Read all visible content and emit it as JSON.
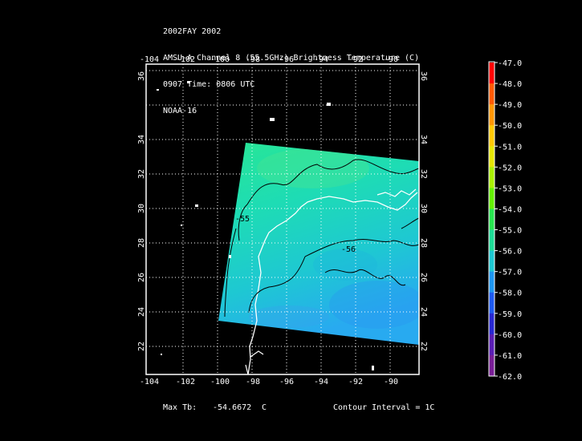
{
  "header": {
    "line1": "2002FAY 2002",
    "line2": "AMSU-A Channel 8 (55.5GHz) Brightness Temperature (C)",
    "line3": "0907 Time: 0806 UTC",
    "line4": "NOAA-16"
  },
  "map": {
    "lon_ticks": [
      "-104",
      "-102",
      "-100",
      "-98",
      "-96",
      "-94",
      "-92",
      "-90"
    ],
    "lat_ticks": [
      "22",
      "24",
      "26",
      "28",
      "30",
      "32",
      "34",
      "36"
    ],
    "contours": [
      {
        "label": "-55"
      },
      {
        "label": "-56"
      }
    ]
  },
  "colorbar": {
    "labels": [
      "-47.0",
      "-48.0",
      "-49.0",
      "-50.0",
      "-51.0",
      "-52.0",
      "-53.0",
      "-54.0",
      "-55.0",
      "-56.0",
      "-57.0",
      "-58.0",
      "-59.0",
      "-60.0",
      "-61.0",
      "-62.0"
    ],
    "colors": [
      "#ff0000",
      "#ff5a00",
      "#ff9600",
      "#ffc800",
      "#e6e600",
      "#aaf000",
      "#64f000",
      "#28e650",
      "#1edc96",
      "#1ec8d2",
      "#1e96f0",
      "#1e5af0",
      "#2828d2",
      "#5a1eb4",
      "#781e96",
      "#643c78"
    ]
  },
  "footer": {
    "max_label": "Max Tb:",
    "max_value": "-54.6672",
    "max_unit": "C",
    "contour_label": "Contour Interval = 1C"
  }
}
